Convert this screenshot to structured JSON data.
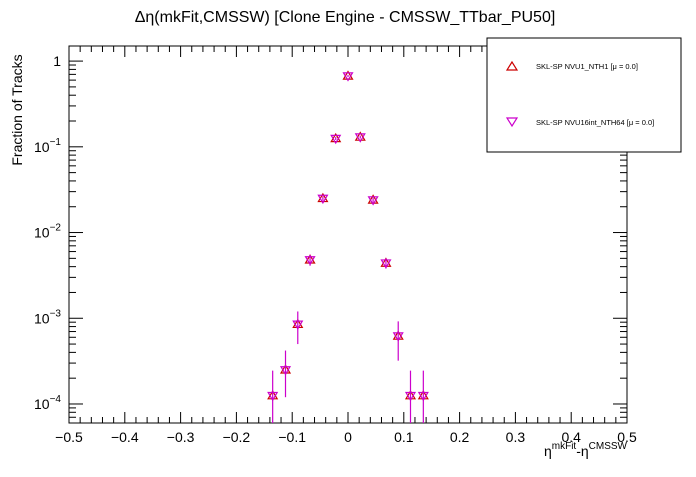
{
  "chart_data": {
    "type": "scatter",
    "title": "Δη(mkFit,CMSSW) [Clone Engine - CMSSW_TTbar_PU50]",
    "xlabel_base": "η",
    "xlabel_sup": "mkFit",
    "xlabel_mid": "-η",
    "xlabel_sup2": "CMSSW",
    "ylabel": "Fraction of Tracks",
    "xlim": [
      -0.5,
      0.5
    ],
    "ylim": [
      6e-05,
      1.5
    ],
    "y_scale": "log",
    "x_ticks": [
      "−0.5",
      "−0.4",
      "−0.3",
      "−0.2",
      "−0.1",
      "0",
      "0.1",
      "0.2",
      "0.3",
      "0.4",
      "0.5"
    ],
    "x_tick_values": [
      -0.5,
      -0.4,
      -0.3,
      -0.2,
      -0.1,
      0,
      0.1,
      0.2,
      0.3,
      0.4,
      0.5
    ],
    "y_tick_values": [
      0.0001,
      0.001,
      0.01,
      0.1,
      1
    ],
    "y_tick_labels": [
      {
        "base": "10",
        "exp": "−4"
      },
      {
        "base": "10",
        "exp": "−3"
      },
      {
        "base": "10",
        "exp": "−2"
      },
      {
        "base": "10",
        "exp": "−1"
      },
      {
        "base": "1",
        "exp": ""
      }
    ],
    "legend_position": "top-right",
    "grid": false,
    "colors": {
      "series1": "#cc0000",
      "series2": "#cc00cc",
      "errorbar": "#cc00cc"
    },
    "series": [
      {
        "name": "SKL-SP NVU1_NTH1 [μ =  0.0]",
        "marker": "triangle-up",
        "x": [
          -0.135,
          -0.112,
          -0.09,
          -0.068,
          -0.045,
          -0.022,
          0.0,
          0.022,
          0.045,
          0.068,
          0.09,
          0.112,
          0.135
        ],
        "y": [
          0.000125,
          0.00025,
          0.00085,
          0.0048,
          0.025,
          0.125,
          0.67,
          0.13,
          0.024,
          0.0044,
          0.00062,
          0.000125,
          0.000125
        ],
        "y_err_low": [
          8e-05,
          0.00013,
          0.00035,
          0.0007,
          0.0015,
          0.005,
          0.02,
          0.005,
          0.0015,
          0.0006,
          0.0003,
          8e-05,
          8e-05
        ],
        "y_err_high": [
          0.00012,
          0.00017,
          0.00035,
          0.0007,
          0.0015,
          0.005,
          0.02,
          0.005,
          0.0015,
          0.0006,
          0.0003,
          0.00012,
          0.00012
        ]
      },
      {
        "name": "SKL-SP NVU16int_NTH64 [μ =  0.0]",
        "marker": "triangle-down",
        "x": [
          -0.135,
          -0.112,
          -0.09,
          -0.068,
          -0.045,
          -0.022,
          0.0,
          0.022,
          0.045,
          0.068,
          0.09,
          0.112,
          0.135
        ],
        "y": [
          0.000125,
          0.00025,
          0.00085,
          0.0048,
          0.025,
          0.125,
          0.67,
          0.13,
          0.024,
          0.0044,
          0.00062,
          0.000125,
          0.000125
        ],
        "y_err_low": [
          8e-05,
          0.00013,
          0.00035,
          0.0007,
          0.0015,
          0.005,
          0.02,
          0.005,
          0.0015,
          0.0006,
          0.0003,
          8e-05,
          8e-05
        ],
        "y_err_high": [
          0.00012,
          0.00017,
          0.00035,
          0.0007,
          0.0015,
          0.005,
          0.02,
          0.005,
          0.0015,
          0.0006,
          0.0003,
          0.00012,
          0.00012
        ]
      }
    ]
  }
}
